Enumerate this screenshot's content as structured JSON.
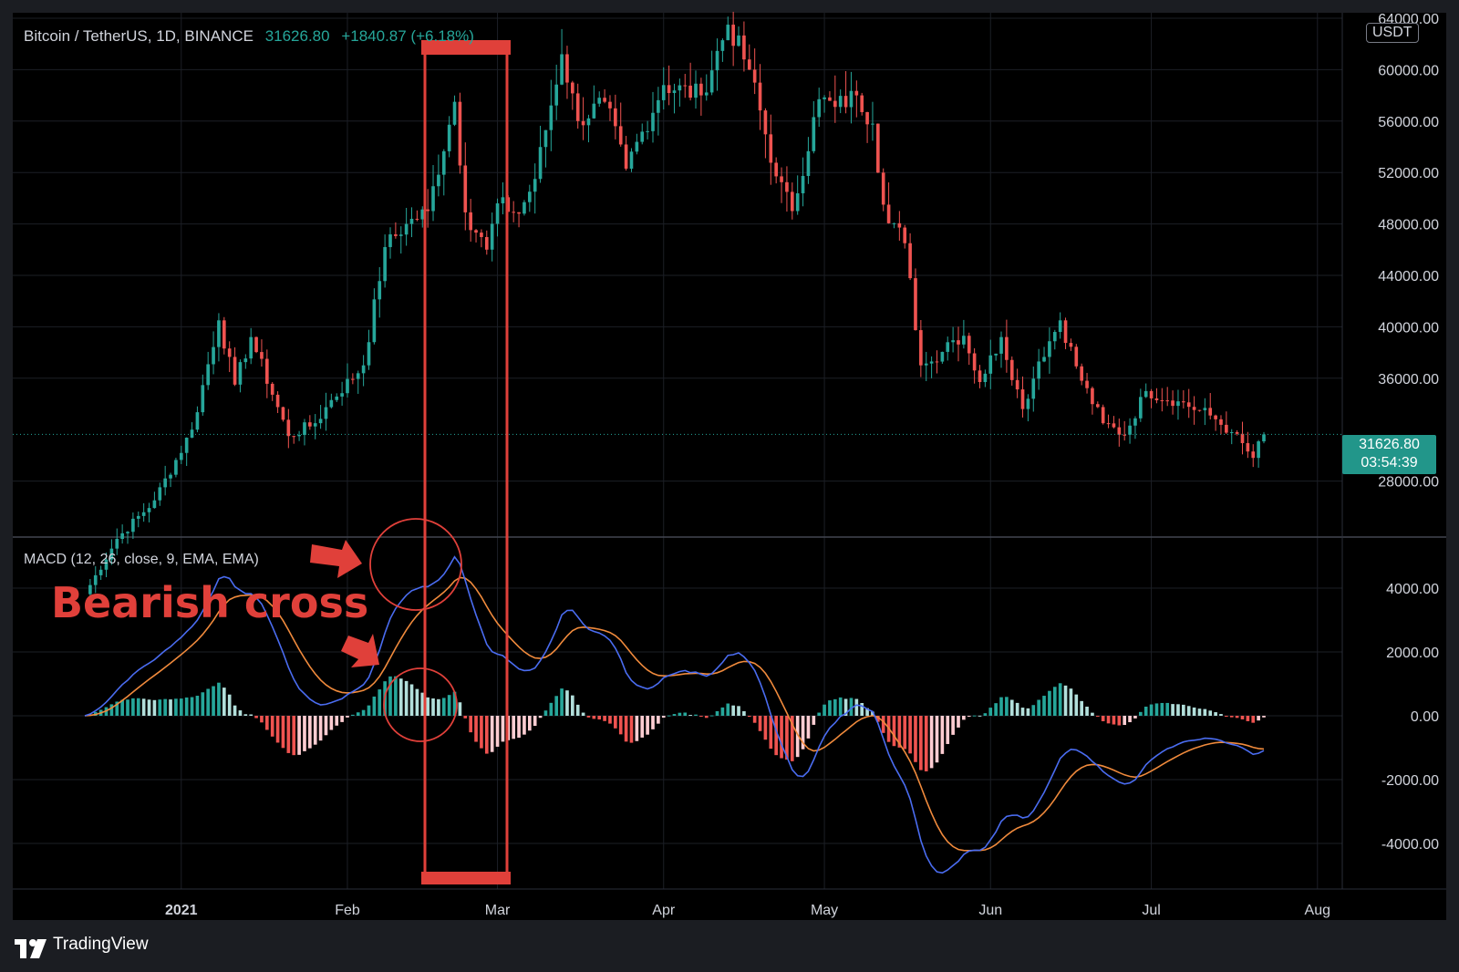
{
  "header": {
    "symbol": "Bitcoin / TetherUS, 1D, BINANCE",
    "last_price": "31626.80",
    "change": "+1840.87 (+6.18%)"
  },
  "currency_label": "USDT",
  "last_price_tag": {
    "price": "31626.80",
    "countdown": "03:54:39"
  },
  "indicator_label": "MACD (12, 26, close, 9, EMA, EMA)",
  "annotation": "Bearish cross",
  "brand": "TradingView",
  "colors": {
    "up": "#26a69a",
    "down": "#ef5350",
    "macd": "#4a6cf0",
    "signal": "#f08a3c",
    "annotation": "#e0403a",
    "hist_up_light": "#b2dfdb",
    "hist_down_light": "#ffcdd2"
  },
  "chart_data": [
    {
      "type": "candlestick",
      "title": "Bitcoin / TetherUS, 1D, BINANCE",
      "y_axis_ticks": [
        "64000.00",
        "60000.00",
        "56000.00",
        "52000.00",
        "48000.00",
        "44000.00",
        "40000.00",
        "36000.00",
        "28000.00"
      ],
      "ylim": [
        25700,
        64000
      ],
      "x_axis_ticks": [
        "2021",
        "Feb",
        "Mar",
        "Apr",
        "May",
        "Jun",
        "Jul",
        "Aug"
      ],
      "x_axis_dates": [
        "2021-01-01",
        "2021-02-01",
        "2021-03-01",
        "2021-04-01",
        "2021-05-01",
        "2021-06-01",
        "2021-07-01",
        "2021-08-01"
      ],
      "date_range": [
        "2020-12-14",
        "2021-07-22"
      ],
      "last_value": 31626.8,
      "close_waypoints": [
        [
          "2020-12-14",
          19200
        ],
        [
          "2020-12-20",
          23500
        ],
        [
          "2020-12-27",
          26500
        ],
        [
          "2021-01-03",
          32000
        ],
        [
          "2021-01-08",
          40500
        ],
        [
          "2021-01-11",
          35500
        ],
        [
          "2021-01-14",
          39200
        ],
        [
          "2021-01-21",
          31500
        ],
        [
          "2021-01-26",
          32500
        ],
        [
          "2021-01-29",
          34300
        ],
        [
          "2021-02-04",
          37000
        ],
        [
          "2021-02-08",
          46200
        ],
        [
          "2021-02-12",
          48000
        ],
        [
          "2021-02-16",
          49000
        ],
        [
          "2021-02-21",
          57500
        ],
        [
          "2021-02-23",
          48900
        ],
        [
          "2021-02-27",
          46000
        ],
        [
          "2021-03-01",
          49600
        ],
        [
          "2021-03-05",
          48800
        ],
        [
          "2021-03-08",
          51500
        ],
        [
          "2021-03-13",
          61200
        ],
        [
          "2021-03-16",
          56000
        ],
        [
          "2021-03-21",
          57500
        ],
        [
          "2021-03-25",
          52300
        ],
        [
          "2021-04-01",
          58800
        ],
        [
          "2021-04-08",
          58000
        ],
        [
          "2021-04-13",
          63500
        ],
        [
          "2021-04-17",
          60000
        ],
        [
          "2021-04-22",
          51700
        ],
        [
          "2021-04-25",
          49000
        ],
        [
          "2021-04-30",
          57700
        ],
        [
          "2021-05-03",
          57100
        ],
        [
          "2021-05-07",
          58000
        ],
        [
          "2021-05-10",
          55800
        ],
        [
          "2021-05-12",
          49500
        ],
        [
          "2021-05-16",
          46500
        ],
        [
          "2021-05-19",
          37000
        ],
        [
          "2021-05-21",
          37300
        ],
        [
          "2021-05-24",
          38800
        ],
        [
          "2021-05-27",
          39300
        ],
        [
          "2021-05-30",
          35700
        ],
        [
          "2021-06-03",
          39200
        ],
        [
          "2021-06-07",
          33600
        ],
        [
          "2021-06-10",
          37300
        ],
        [
          "2021-06-14",
          40500
        ],
        [
          "2021-06-18",
          35800
        ],
        [
          "2021-06-22",
          32500
        ],
        [
          "2021-06-26",
          31600
        ],
        [
          "2021-06-30",
          35000
        ],
        [
          "2021-07-06",
          34200
        ],
        [
          "2021-07-12",
          33100
        ],
        [
          "2021-07-16",
          31800
        ],
        [
          "2021-07-20",
          29800
        ],
        [
          "2021-07-22",
          31626.8
        ]
      ]
    },
    {
      "type": "macd",
      "title": "MACD (12, 26, close, 9, EMA, EMA)",
      "y_axis_ticks": [
        "4000.00",
        "2000.00",
        "0.00",
        "-2000.00",
        "-4000.00"
      ],
      "ylim": [
        -5500,
        5500
      ],
      "series": [
        {
          "name": "MACD"
        },
        {
          "name": "Signal"
        },
        {
          "name": "Histogram"
        }
      ]
    }
  ]
}
